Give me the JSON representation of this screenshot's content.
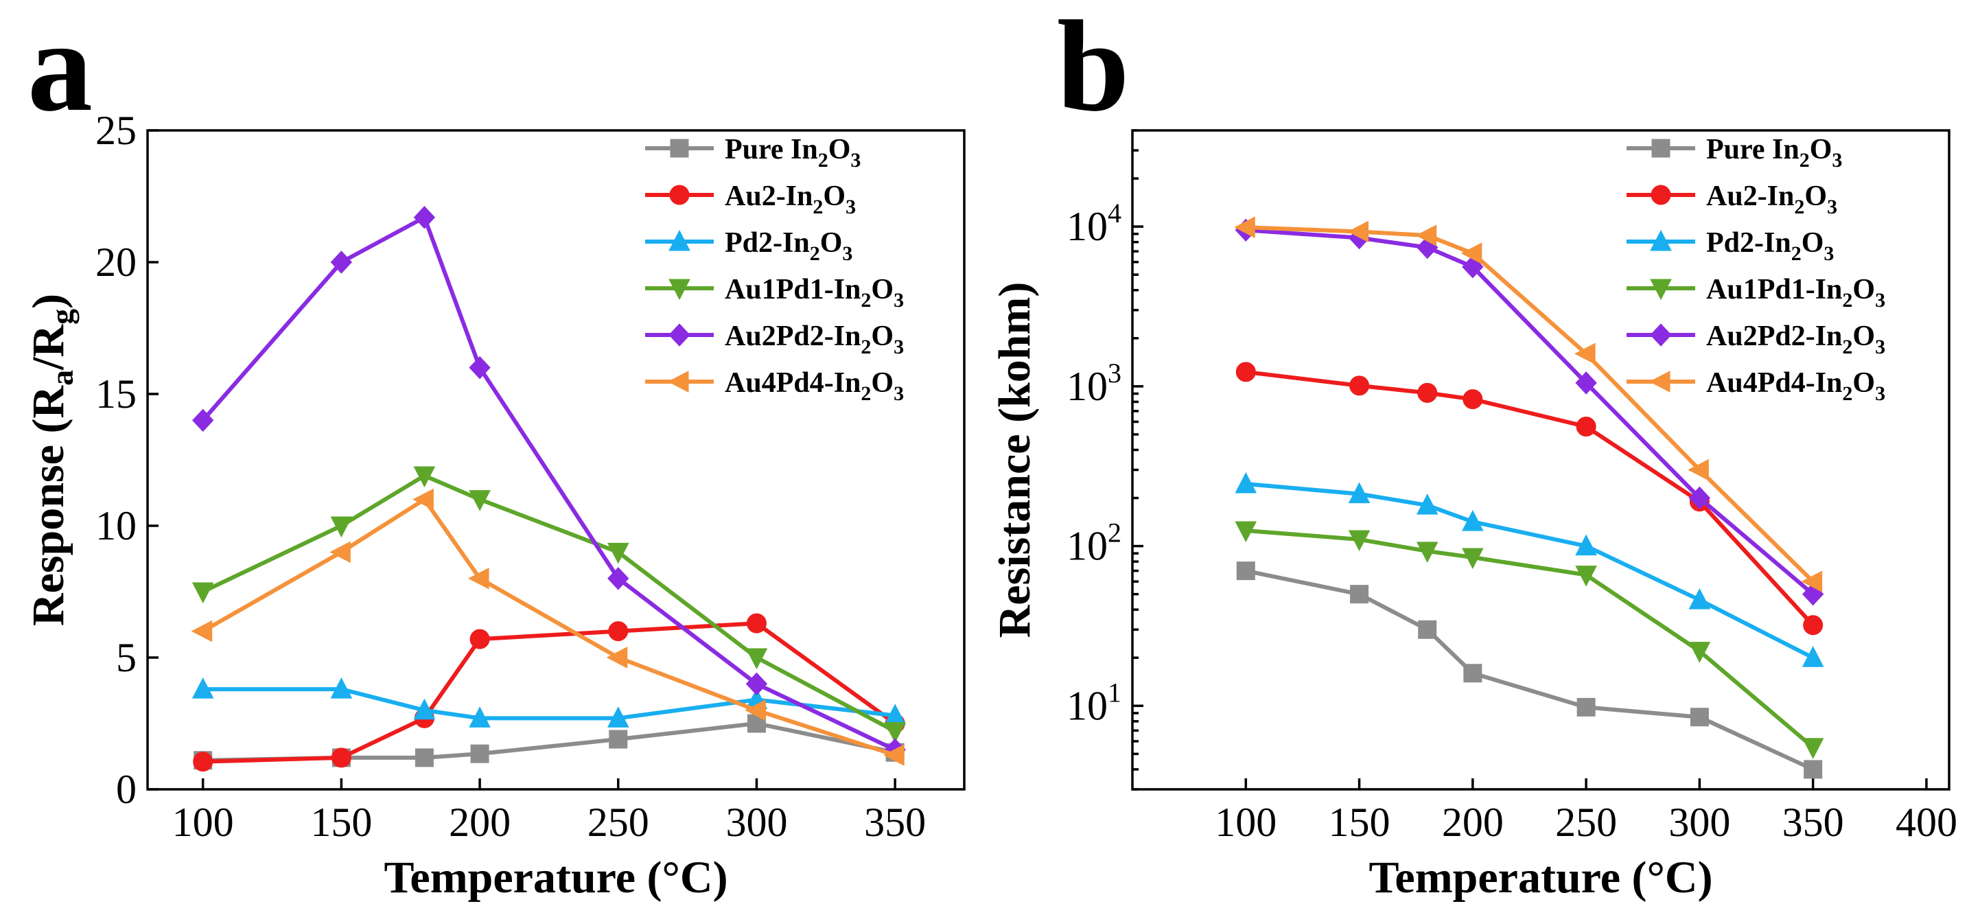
{
  "chart_data": [
    {
      "type": "line",
      "panel_label": "a",
      "scale": "linear",
      "xlabel": "Temperature (°C)",
      "ylabel": {
        "text": "Response (R",
        "sub1": "a",
        "mid": "/R",
        "sub2": "g",
        "end": ")"
      },
      "xlim": [
        80,
        375
      ],
      "ylim": [
        0,
        25
      ],
      "xticks": [
        100,
        150,
        200,
        250,
        300,
        350
      ],
      "xtick_labels": [
        "100",
        "150",
        "200",
        "250",
        "300",
        "350"
      ],
      "yticks": [
        0,
        5,
        10,
        15,
        20,
        25
      ],
      "ytick_labels": [
        "0",
        "5",
        "10",
        "15",
        "20",
        "25"
      ],
      "legend_position": "top-right",
      "x": [
        100,
        150,
        180,
        200,
        250,
        300,
        350
      ],
      "series": [
        {
          "name": "Pure In2O3",
          "label": {
            "pre": "Pure In",
            "s1": "2",
            "mid": "O",
            "s2": "3"
          },
          "color": "#8c8c8c",
          "marker": "square",
          "values": [
            1.1,
            1.2,
            1.2,
            1.35,
            1.9,
            2.5,
            1.4
          ]
        },
        {
          "name": "Au2-In2O3",
          "label": {
            "pre": "Au2-In",
            "s1": "2",
            "mid": "O",
            "s2": "3"
          },
          "color": "#ee1c1c",
          "marker": "circle",
          "values": [
            1.05,
            1.2,
            2.7,
            5.7,
            6.0,
            6.3,
            2.5
          ]
        },
        {
          "name": "Pd2-In2O3",
          "label": {
            "pre": "Pd2-In",
            "s1": "2",
            "mid": "O",
            "s2": "3"
          },
          "color": "#19aef0",
          "marker": "triangle-up",
          "values": [
            3.8,
            3.8,
            3.0,
            2.7,
            2.7,
            3.4,
            2.8
          ]
        },
        {
          "name": "Au1Pd1-In2O3",
          "label": {
            "pre": "Au1Pd1-In",
            "s1": "2",
            "mid": "O",
            "s2": "3"
          },
          "color": "#5ea62a",
          "marker": "triangle-down",
          "values": [
            7.5,
            10.0,
            11.9,
            11.0,
            9.0,
            5.0,
            2.2
          ]
        },
        {
          "name": "Au2Pd2-In2O3",
          "label": {
            "pre": "Au2Pd2-In",
            "s1": "2",
            "mid": "O",
            "s2": "3"
          },
          "color": "#8a2be2",
          "marker": "diamond",
          "values": [
            14.0,
            20.0,
            21.7,
            16.0,
            8.0,
            4.0,
            1.5
          ]
        },
        {
          "name": "Au4Pd4-In2O3",
          "label": {
            "pre": "Au4Pd4-In",
            "s1": "2",
            "mid": "O",
            "s2": "3"
          },
          "color": "#f5923a",
          "marker": "triangle-left",
          "values": [
            6.0,
            9.0,
            11.0,
            8.0,
            5.0,
            3.0,
            1.3
          ]
        }
      ]
    },
    {
      "type": "line",
      "panel_label": "b",
      "scale": "log",
      "xlabel": "Temperature (°C)",
      "ylabel": {
        "text": "Resistance (kohm)"
      },
      "xlim": [
        50,
        410
      ],
      "ylim": [
        3,
        40000
      ],
      "xticks": [
        100,
        150,
        200,
        250,
        300,
        350,
        400
      ],
      "xtick_labels": [
        "100",
        "150",
        "200",
        "250",
        "300",
        "350",
        "400"
      ],
      "yticks": [
        10,
        100,
        1000,
        10000
      ],
      "ytick_labels": [
        {
          "base": "10",
          "exp": "1"
        },
        {
          "base": "10",
          "exp": "2"
        },
        {
          "base": "10",
          "exp": "3"
        },
        {
          "base": "10",
          "exp": "4"
        }
      ],
      "legend_position": "top-right",
      "x": [
        100,
        150,
        180,
        200,
        250,
        300,
        350
      ],
      "series": [
        {
          "name": "Pure In2O3",
          "label": {
            "pre": "Pure In",
            "s1": "2",
            "mid": "O",
            "s2": "3"
          },
          "color": "#8c8c8c",
          "marker": "square",
          "values": [
            70,
            50,
            30,
            16,
            9.8,
            8.5,
            4.0
          ]
        },
        {
          "name": "Au2-In2O3",
          "label": {
            "pre": "Au2-In",
            "s1": "2",
            "mid": "O",
            "s2": "3"
          },
          "color": "#ee1c1c",
          "marker": "circle",
          "values": [
            1230,
            1010,
            910,
            830,
            560,
            190,
            32
          ]
        },
        {
          "name": "Pd2-In2O3",
          "label": {
            "pre": "Pd2-In",
            "s1": "2",
            "mid": "O",
            "s2": "3"
          },
          "color": "#19aef0",
          "marker": "triangle-up",
          "values": [
            245,
            212,
            180,
            142,
            100,
            46,
            20
          ]
        },
        {
          "name": "Au1Pd1-In2O3",
          "label": {
            "pre": "Au1Pd1-In",
            "s1": "2",
            "mid": "O",
            "s2": "3"
          },
          "color": "#5ea62a",
          "marker": "triangle-down",
          "values": [
            125,
            110,
            93,
            85,
            66,
            22,
            5.5
          ]
        },
        {
          "name": "Au2Pd2-In2O3",
          "label": {
            "pre": "Au2Pd2-In",
            "s1": "2",
            "mid": "O",
            "s2": "3"
          },
          "color": "#8a2be2",
          "marker": "diamond",
          "values": [
            9500,
            8500,
            7400,
            5600,
            1050,
            200,
            50
          ]
        },
        {
          "name": "Au4Pd4-In2O3",
          "label": {
            "pre": "Au4Pd4-In",
            "s1": "2",
            "mid": "O",
            "s2": "3"
          },
          "color": "#f5923a",
          "marker": "triangle-left",
          "values": [
            9900,
            9300,
            8800,
            6800,
            1600,
            300,
            60
          ]
        }
      ]
    }
  ]
}
